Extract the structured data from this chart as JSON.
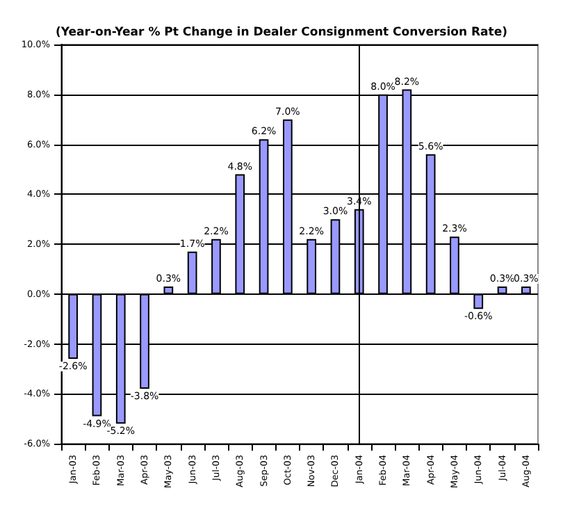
{
  "chart_data": {
    "type": "bar",
    "title": "(Year-on-Year % Pt Change in Dealer Consignment Conversion Rate)",
    "categories": [
      "Jan-03",
      "Feb-03",
      "Mar-03",
      "Apr-03",
      "May-03",
      "Jun-03",
      "Jul-03",
      "Aug-03",
      "Sep-03",
      "Oct-03",
      "Nov-03",
      "Dec-03",
      "Jan-04",
      "Feb-04",
      "Mar-04",
      "Apr-04",
      "May-04",
      "Jun-04",
      "Jul-04",
      "Aug-04"
    ],
    "values": [
      -2.6,
      -4.9,
      -5.2,
      -3.8,
      0.3,
      1.7,
      2.2,
      4.8,
      6.2,
      7.0,
      2.2,
      3.0,
      3.4,
      8.0,
      8.2,
      5.6,
      2.3,
      -0.6,
      0.3,
      0.3
    ],
    "value_labels": [
      "-2.6%",
      "-4.9%",
      "-5.2%",
      "-3.8%",
      "0.3%",
      "1.7%",
      "2.2%",
      "4.8%",
      "6.2%",
      "7.0%",
      "2.2%",
      "3.0%",
      "3.4%",
      "8.0%",
      "8.2%",
      "5.6%",
      "2.3%",
      "-0.6%",
      "0.3%",
      "0.3%"
    ],
    "color": "#9999ff",
    "ylim": [
      -6,
      10
    ],
    "yticks": [
      {
        "value": -6,
        "label": "-6.0%"
      },
      {
        "value": -4,
        "label": "-4.0%"
      },
      {
        "value": -2,
        "label": "-2.0%"
      },
      {
        "value": 0,
        "label": "0.0%"
      },
      {
        "value": 2,
        "label": "2.0%"
      },
      {
        "value": 4,
        "label": "4.0%"
      },
      {
        "value": 6,
        "label": "6.0%"
      },
      {
        "value": 8,
        "label": "8.0%"
      },
      {
        "value": 10,
        "label": "10.0%"
      }
    ],
    "grid": "y",
    "ref_lines": [
      {
        "axis": "x",
        "value": "Jan-04",
        "color": "#000000"
      }
    ]
  }
}
